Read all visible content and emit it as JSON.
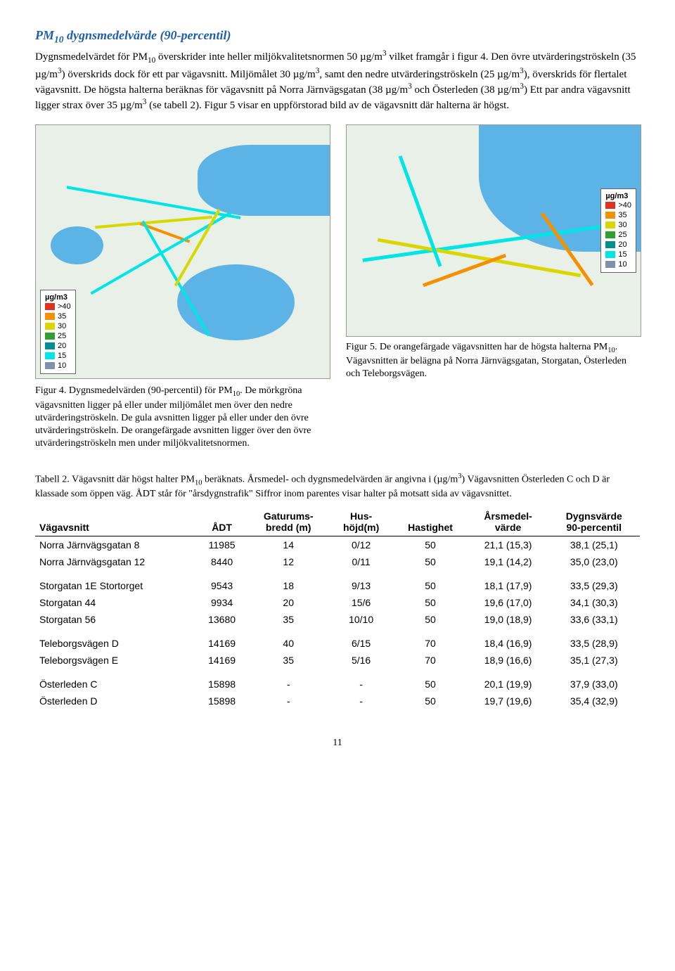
{
  "heading_html": "PM<span class='sub10'>10</span> dygnsmedelvärde (90-percentil)",
  "body_html": "Dygnsmedelvärdet för PM<span class='sub10'>10</span> överskrider inte heller miljökvalitetsnormen 50 µg/m<span class='sup3'>3</span> vilket framgår i figur 4. Den övre utvärderingströskeln (35 µg/m<span class='sup3'>3</span>) överskrids dock för ett par vägavsnitt. Miljömålet 30 µg/m<span class='sup3'>3</span>, samt den nedre utvärderingströskeln (25 µg/m<span class='sup3'>3</span>), överskrids för flertalet vägavsnitt. De högsta halterna beräknas för vägavsnitt på Norra Järnvägsgatan (38 µg/m<span class='sup3'>3</span> och Österleden (38 µg/m<span class='sup3'>3</span>) Ett par andra vägavsnitt ligger strax över 35 µg/m<span class='sup3'>3</span> (se tabell 2). Figur 5 visar en uppförstorad bild av de vägavsnitt där halterna är högst.",
  "legend_title": "µg/m3",
  "legend_items": [
    {
      "label": ">40",
      "color": "#e03020"
    },
    {
      "label": "35",
      "color": "#f59000"
    },
    {
      "label": "30",
      "color": "#d8d800"
    },
    {
      "label": "25",
      "color": "#2ea02e"
    },
    {
      "label": "20",
      "color": "#009090"
    },
    {
      "label": "15",
      "color": "#00e5e5"
    },
    {
      "label": "10",
      "color": "#8090b0"
    }
  ],
  "fig4_caption_html": "Figur 4. Dygnsmedelvärden (90-percentil) för PM<span class='sub10'>10</span>. De mörkgröna vägavsnitten ligger på eller under miljömålet men över den nedre utvärderingströskeln. De gula avsnitten ligger på eller under den övre utvärderingströskeln. De orangefärgade avsnitten ligger över den övre utvärderingströskeln men under miljökvalitetsnormen.",
  "fig5_caption_html": "Figur 5. De orangefärgade vägavsnitten har de högsta halterna PM<span class='sub10'>10</span>. Vägavsnitten är belägna på Norra Järnvägsgatan, Storgatan, Österleden och Teleborgsvägen.",
  "table_caption_html": "Tabell 2. Vägavsnitt där högst halter PM<span class='sub10'>10</span> beräknats. Årsmedel- och dygnsmedelvärden är angivna i (µg/m<span class='sup3'>3</span>) Vägavsnitten Österleden C och D är klassade som öppen väg. ÅDT står för \"årsdygnstrafik\" Siffror inom parentes visar halter på motsatt sida av vägavsnittet.",
  "table": {
    "columns": [
      "Vägavsnitt",
      "ÅDT",
      "Gaturums-\nbredd (m)",
      "Hus-\nhöjd(m)",
      "Hastighet",
      "Årsmedel-\nvärde",
      "Dygnsvärde\n90-percentil"
    ],
    "groups": [
      [
        [
          "Norra Järnvägsgatan 8",
          "11985",
          "14",
          "0/12",
          "50",
          "21,1 (15,3)",
          "38,1 (25,1)"
        ],
        [
          "Norra Järnvägsgatan 12",
          "8440",
          "12",
          "0/11",
          "50",
          "19,1 (14,2)",
          "35,0 (23,0)"
        ]
      ],
      [
        [
          "Storgatan 1E Stortorget",
          "9543",
          "18",
          "9/13",
          "50",
          "18,1 (17,9)",
          "33,5 (29,3)"
        ],
        [
          "Storgatan 44",
          "9934",
          "20",
          "15/6",
          "50",
          "19,6 (17,0)",
          "34,1 (30,3)"
        ],
        [
          "Storgatan 56",
          "13680",
          "35",
          "10/10",
          "50",
          "19,0 (18,9)",
          "33,6 (33,1)"
        ]
      ],
      [
        [
          "Teleborgsvägen D",
          "14169",
          "40",
          "6/15",
          "70",
          "18,4 (16,9)",
          "33,5 (28,9)"
        ],
        [
          "Teleborgsvägen E",
          "14169",
          "35",
          "5/16",
          "70",
          "18,9 (16,6)",
          "35,1 (27,3)"
        ]
      ],
      [
        [
          "Österleden C",
          "15898",
          "-",
          "-",
          "50",
          "20,1 (19,9)",
          "37,9 (33,0)"
        ],
        [
          "Österleden D",
          "15898",
          "-",
          "-",
          "50",
          "19,7 (19,6)",
          "35,4 (32,9)"
        ]
      ]
    ]
  },
  "page_number": "11"
}
